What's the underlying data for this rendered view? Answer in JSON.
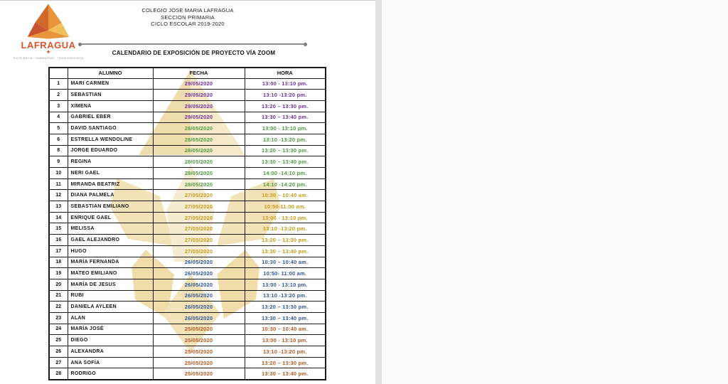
{
  "page": {
    "institution_lines": [
      "COLEGIO JOSE MARIA LAFRAGUA",
      "SECCION PRIMARIA",
      "CICLO ESCOLAR 2019-2020"
    ],
    "title": "CALENDARIO DE EXPOSICIÓN DE PROYECTO VÍA ZOOM",
    "logo": {
      "brand": "LAFRAGUA",
      "plus_glyph": "✚",
      "motto": "EXCELENCIA · HUMANISMO · TRASCENDENCIA",
      "brand_color": "#e0532a",
      "triangle_colors": [
        "#e8953b",
        "#d2692c",
        "#f0c05a",
        "#c75530"
      ]
    }
  },
  "table": {
    "headers": {
      "num": "",
      "alumno": "ALUMNO",
      "fecha": "FECHA",
      "hora": "HORA"
    },
    "date_colors": {
      "29/05/2020": "#7030a0",
      "28/05/2020": "#4e9a41",
      "27/05/2020": "#c79a18",
      "26/05/2020": "#2f5597",
      "25/05/2020": "#b15a24"
    },
    "rows": [
      {
        "num": "1",
        "name": "MARI CARMEN",
        "date": "29/05/2020",
        "time": "13:00 - 13:10 pm."
      },
      {
        "num": "2",
        "name": "SEBASTIAN",
        "date": "29/05/2020",
        "time": "13:10 -13:20 pm."
      },
      {
        "num": "3",
        "name": "XIMENA",
        "date": "29/05/2020",
        "time": "13:20 – 13:30 pm."
      },
      {
        "num": "4",
        "name": "GABRIEL EBER",
        "date": "29/05/2020",
        "time": "13:30 – 13:40 pm."
      },
      {
        "num": "5",
        "name": "DAVID SANTIAGO",
        "date": "28/05/2020",
        "time": "13:00 - 13:10 pm."
      },
      {
        "num": "6",
        "name": "ESTRELLA WENDOLINE",
        "date": "28/05/2020",
        "time": "13:10 -13:20 pm."
      },
      {
        "num": "8",
        "name": "JORGE EDUARDO",
        "date": "28/05/2020",
        "time": "13:20 – 13:30 pm."
      },
      {
        "num": "9",
        "name": "REGINA",
        "date": "28/05/2020",
        "time": "13:30 – 13:40 pm."
      },
      {
        "num": "10",
        "name": "NERI GAEL",
        "date": "28/05/2020",
        "time": "14:00 -14:10 pm."
      },
      {
        "num": "11",
        "name": "MIRANDA BEATRIZ",
        "date": "28/05/2020",
        "time": "14:10 -14:20 pm."
      },
      {
        "num": "12",
        "name": "DIANA PALMELA",
        "date": "27/05/2020",
        "time": "10:30 – 10:40 am."
      },
      {
        "num": "13",
        "name": "SEBASTIAN EMILIANO",
        "date": "27/05/2020",
        "time": "10:50-11:00 am."
      },
      {
        "num": "14",
        "name": "ENRIQUE GAEL",
        "date": "27/05/2020",
        "time": "13:00 - 13:10 pm."
      },
      {
        "num": "15",
        "name": "MELISSA",
        "date": "27/05/2020",
        "time": "13:10 -13:20 pm."
      },
      {
        "num": "16",
        "name": "GAEL ALEJANDRO",
        "date": "27/05/2020",
        "time": "13:20 – 13:30 pm."
      },
      {
        "num": "17",
        "name": "HUGO",
        "date": "27/05/2020",
        "time": "13:30 – 13:40 pm."
      },
      {
        "num": "18",
        "name": "MARÍA FERNANDA",
        "date": "26/05/2020",
        "time": "10:30 – 10:40 am."
      },
      {
        "num": "19",
        "name": "MATEO EMILIANO",
        "date": "26/05/2020",
        "time": "10:50- 11:00 am."
      },
      {
        "num": "20",
        "name": "MARÍA DE JESUS",
        "date": "26/05/2020",
        "time": "13:00 - 13:10 pm."
      },
      {
        "num": "21",
        "name": "RUBI",
        "date": "26/05/2020",
        "time": "13:10 -13:20 pm."
      },
      {
        "num": "22",
        "name": "DANIELA AYLEEN",
        "date": "26/05/2020",
        "time": "13:20 – 13:30 pm."
      },
      {
        "num": "23",
        "name": "ALAN",
        "date": "26/05/2020",
        "time": "13:30 – 13:40 pm."
      },
      {
        "num": "24",
        "name": "MARÍA JOSÉ",
        "date": "25/05/2020",
        "time": "10:30 – 10:40 am."
      },
      {
        "num": "25",
        "name": "DIEGO",
        "date": "25/05/2020",
        "time": "13:00 - 13:10 pm."
      },
      {
        "num": "26",
        "name": "ALEXANDRA",
        "date": "25/05/2020",
        "time": "13:10 -13:20 pm."
      },
      {
        "num": "27",
        "name": "ANA SOFÍA",
        "date": "25/05/2020",
        "time": "13:20 – 13:30 pm."
      },
      {
        "num": "28",
        "name": "RODRIGO",
        "date": "25/05/2020",
        "time": "13:30 – 13:40 pm."
      }
    ]
  }
}
